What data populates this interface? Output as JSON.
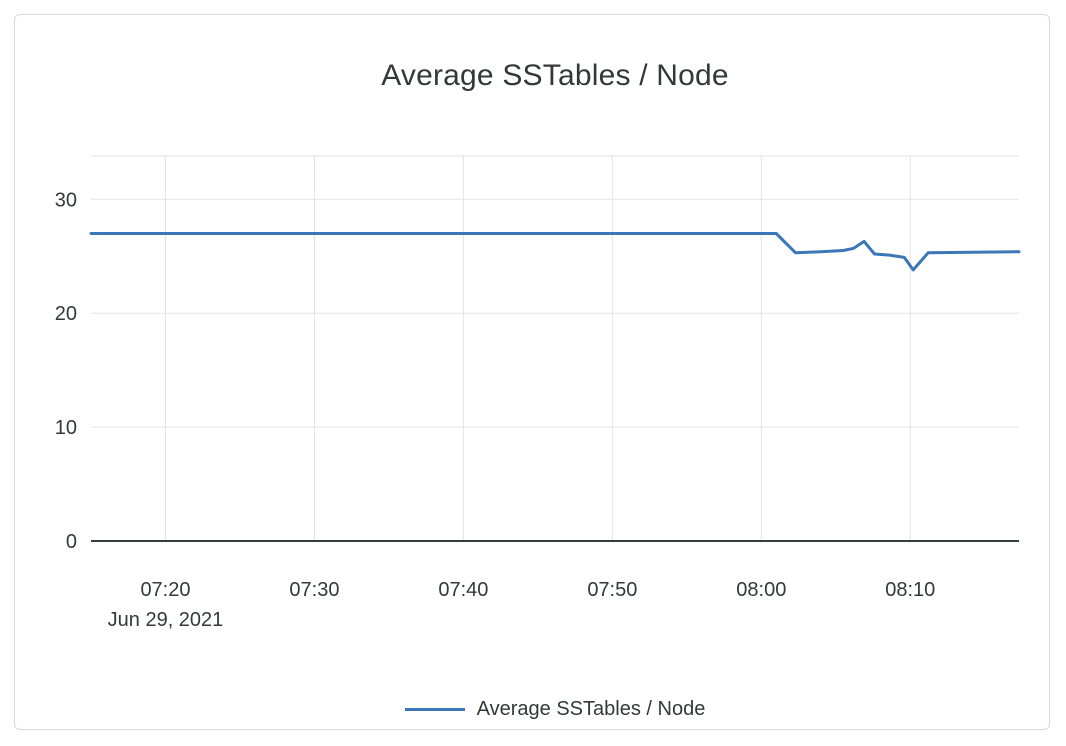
{
  "card": {
    "title": "Average SSTables / Node"
  },
  "legend": {
    "label": "Average SSTables / Node"
  },
  "colors": {
    "line": "#3b76b7",
    "grid": "#e3e3e3",
    "axis": "#3a3d40",
    "text": "#35383b",
    "border": "#d8d8d8"
  },
  "chart_data": {
    "type": "line",
    "title": "Average SSTables / Node",
    "date_label": "Jun 29, 2021",
    "x_ticks": [
      "07:20",
      "07:30",
      "07:40",
      "07:50",
      "08:00",
      "08:10"
    ],
    "x_tick_minutes": [
      5,
      15,
      25,
      35,
      45,
      55
    ],
    "x_minutes_from": "07:15",
    "x_range_minutes": [
      0,
      62.3
    ],
    "y_ticks": [
      0,
      10,
      20,
      30
    ],
    "ylim": [
      0,
      33.8
    ],
    "grid": true,
    "legend_position": "bottom",
    "series": [
      {
        "name": "Average SSTables / Node",
        "color": "#3b76b7",
        "points": [
          [
            0,
            27
          ],
          [
            46,
            27
          ],
          [
            47.3,
            25.3
          ],
          [
            49,
            25.4
          ],
          [
            50.5,
            25.5
          ],
          [
            51.2,
            25.7
          ],
          [
            51.9,
            26.3
          ],
          [
            52.6,
            25.2
          ],
          [
            53.6,
            25.1
          ],
          [
            54.6,
            24.9
          ],
          [
            55.2,
            23.8
          ],
          [
            56.2,
            25.3
          ],
          [
            62.3,
            25.4
          ]
        ]
      }
    ]
  }
}
